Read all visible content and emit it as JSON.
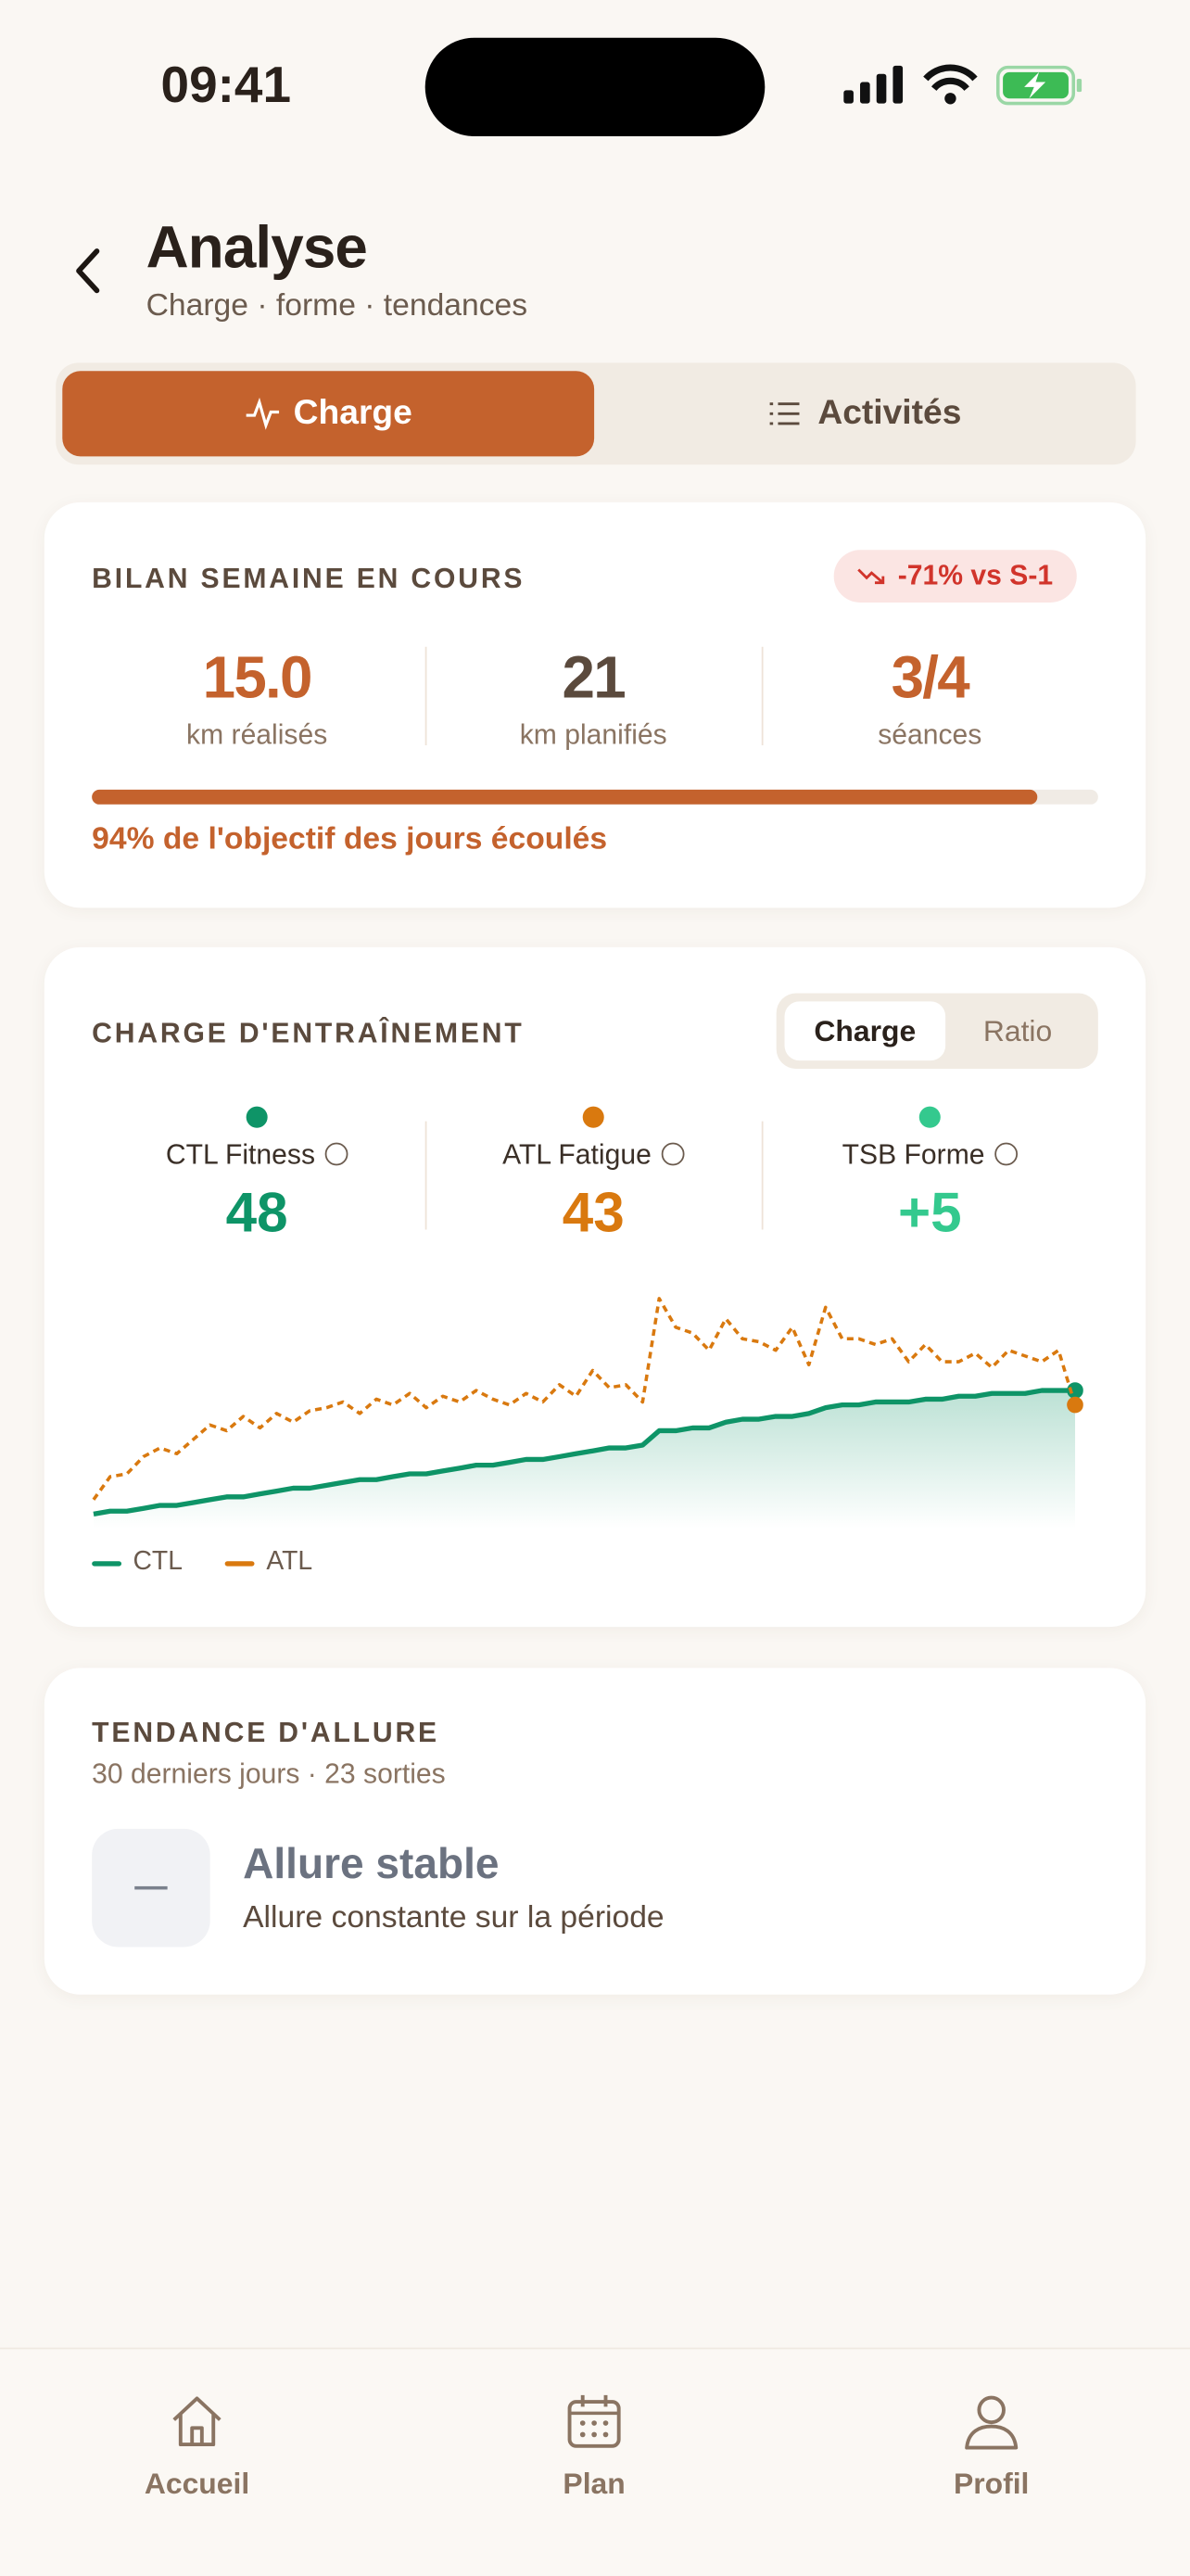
{
  "status_bar": {
    "time": "09:41"
  },
  "header": {
    "title": "Analyse",
    "subtitle": "Charge · forme · tendances"
  },
  "tabs": [
    "Charge",
    "Activités"
  ],
  "week_summary": {
    "title": "BILAN SEMAINE EN COURS",
    "badge": "-71% vs S-1",
    "stats": [
      {
        "value": "15.0",
        "label": "km réalisés",
        "color": "#c4622d"
      },
      {
        "value": "21",
        "label": "km planifiés",
        "color": "#5b4a3d"
      },
      {
        "value": "3/4",
        "label": "séances",
        "color": "#c4622d"
      }
    ],
    "progress_percent": 94,
    "progress_text": "94% de l'objectif des jours écoulés"
  },
  "training_load": {
    "title": "CHARGE D'ENTRAÎNEMENT",
    "toggle": [
      "Charge",
      "Ratio"
    ],
    "metrics": [
      {
        "label": "CTL Fitness",
        "value": "48",
        "color": "#0e9467"
      },
      {
        "label": "ATL Fatigue",
        "value": "43",
        "color": "#d9790f"
      },
      {
        "label": "TSB Forme",
        "value": "+5",
        "color": "#34c98e"
      }
    ]
  },
  "chart_data": {
    "type": "line",
    "ylim": [
      0,
      80
    ],
    "series": [
      {
        "name": "CTL",
        "color": "#0e9467",
        "values": [
          5,
          6,
          6,
          7,
          8,
          8,
          9,
          10,
          11,
          11,
          12,
          13,
          14,
          14,
          15,
          16,
          17,
          17,
          18,
          19,
          19,
          20,
          21,
          22,
          22,
          23,
          24,
          24,
          25,
          26,
          27,
          28,
          28,
          29,
          34,
          34,
          35,
          35,
          37,
          38,
          38,
          39,
          39,
          40,
          42,
          43,
          43,
          44,
          44,
          44,
          45,
          45,
          46,
          46,
          47,
          47,
          47,
          48,
          48,
          48
        ]
      },
      {
        "name": "ATL",
        "color": "#d9790f",
        "values": [
          10,
          18,
          19,
          25,
          28,
          26,
          31,
          36,
          34,
          39,
          35,
          40,
          37,
          41,
          42,
          44,
          40,
          45,
          43,
          47,
          42,
          46,
          44,
          48,
          45,
          43,
          47,
          44,
          50,
          46,
          55,
          49,
          50,
          44,
          80,
          70,
          68,
          62,
          73,
          66,
          65,
          62,
          70,
          57,
          77,
          66,
          66,
          64,
          66,
          58,
          64,
          58,
          58,
          61,
          56,
          62,
          60,
          58,
          62,
          43
        ]
      }
    ]
  },
  "pace_trend": {
    "title": "TENDANCE D'ALLURE",
    "subtitle": "30 derniers jours · 23 sorties",
    "status": "Allure stable",
    "description": "Allure constante sur la période"
  },
  "nav": [
    "Accueil",
    "Plan",
    "Profil"
  ]
}
